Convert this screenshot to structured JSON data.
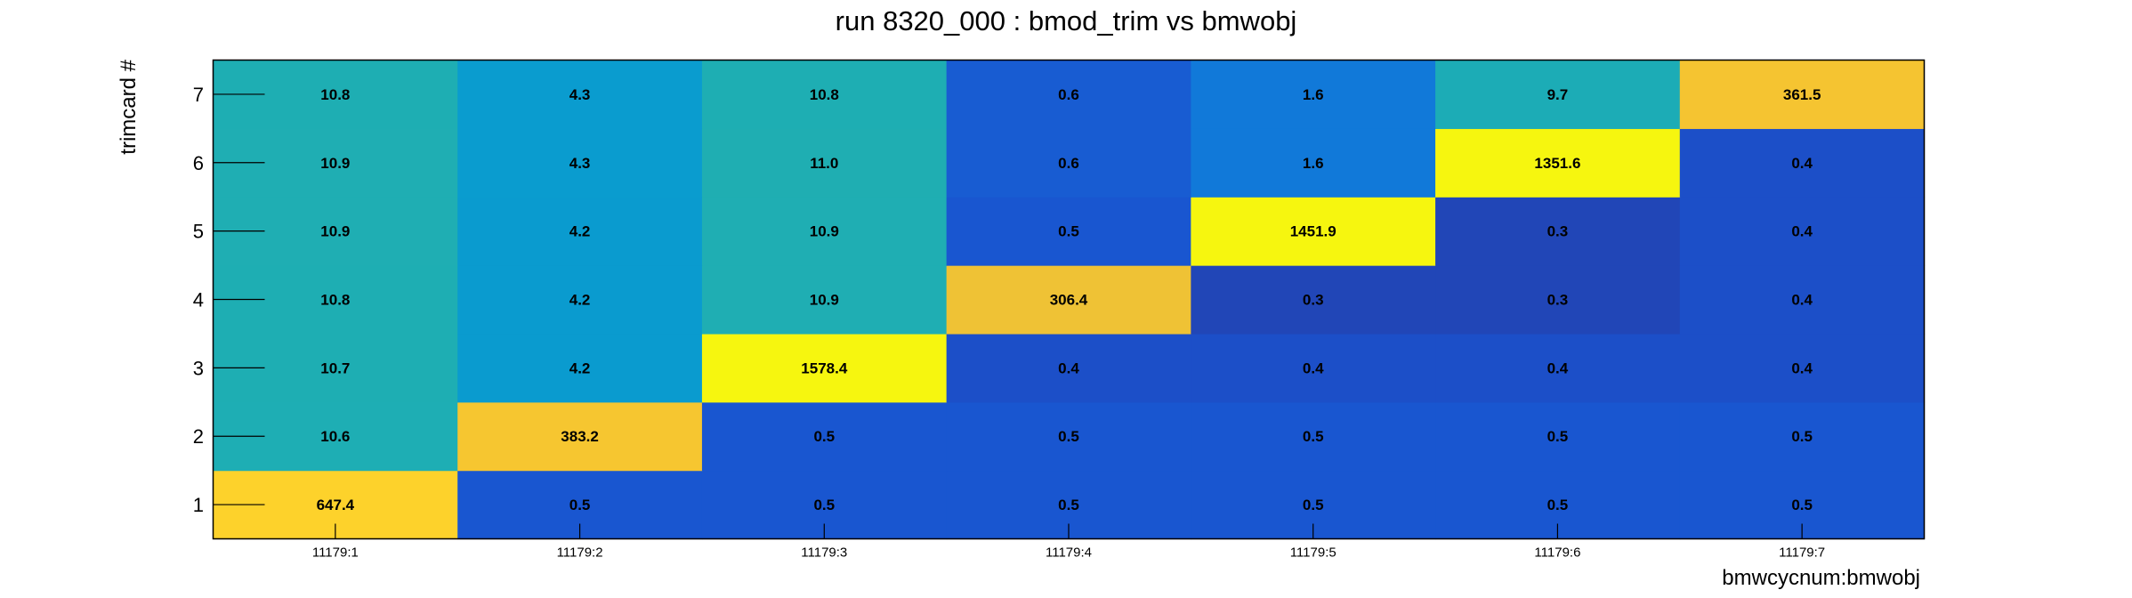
{
  "chart_data": {
    "type": "heatmap",
    "title": "run 8320_000 : bmod_trim vs bmwobj",
    "xlabel": "bmwcycnum:bmwobj",
    "ylabel": "trimcard #",
    "x_categories": [
      "11179:1",
      "11179:2",
      "11179:3",
      "11179:4",
      "11179:5",
      "11179:6",
      "11179:7"
    ],
    "y_categories": [
      "1",
      "2",
      "3",
      "4",
      "5",
      "6",
      "7"
    ],
    "values": [
      [
        647.4,
        0.5,
        0.5,
        0.5,
        0.5,
        0.5,
        0.5
      ],
      [
        10.6,
        383.2,
        0.5,
        0.5,
        0.5,
        0.5,
        0.5
      ],
      [
        10.7,
        4.2,
        1578.4,
        0.4,
        0.4,
        0.4,
        0.4
      ],
      [
        10.8,
        4.2,
        10.9,
        306.4,
        0.3,
        0.3,
        0.4
      ],
      [
        10.9,
        4.2,
        10.9,
        0.5,
        1451.9,
        0.3,
        0.4
      ],
      [
        10.9,
        4.3,
        11.0,
        0.6,
        1.6,
        1351.6,
        0.4
      ],
      [
        10.8,
        4.3,
        10.8,
        0.6,
        1.6,
        9.7,
        361.5
      ]
    ],
    "value_labels": [
      [
        "647.4",
        "0.5",
        "0.5",
        "0.5",
        "0.5",
        "0.5",
        "0.5"
      ],
      [
        "10.6",
        "383.2",
        "0.5",
        "0.5",
        "0.5",
        "0.5",
        "0.5"
      ],
      [
        "10.7",
        "4.2",
        "1578.4",
        "0.4",
        "0.4",
        "0.4",
        "0.4"
      ],
      [
        "10.8",
        "4.2",
        "10.9",
        "306.4",
        "0.3",
        "0.3",
        "0.4"
      ],
      [
        "10.9",
        "4.2",
        "10.9",
        "0.5",
        "1451.9",
        "0.3",
        "0.4"
      ],
      [
        "10.9",
        "4.3",
        "11.0",
        "0.6",
        "1.6",
        "1351.6",
        "0.4"
      ],
      [
        "10.8",
        "4.3",
        "10.8",
        "0.6",
        "1.6",
        "9.7",
        "361.5"
      ]
    ],
    "color_scale": "log",
    "grid": false,
    "legend": "none",
    "palette": [
      {
        "value": 0.2,
        "color": "#27399f"
      },
      {
        "value": 0.45,
        "color": "#1a53cf"
      },
      {
        "value": 1.5,
        "color": "#1177da"
      },
      {
        "value": 4.3,
        "color": "#0a9ccf"
      },
      {
        "value": 10.8,
        "color": "#1eaeb3"
      },
      {
        "value": 330,
        "color": "#f4c232"
      },
      {
        "value": 650,
        "color": "#fdd22b"
      },
      {
        "value": 1300,
        "color": "#f6f60f"
      }
    ]
  }
}
